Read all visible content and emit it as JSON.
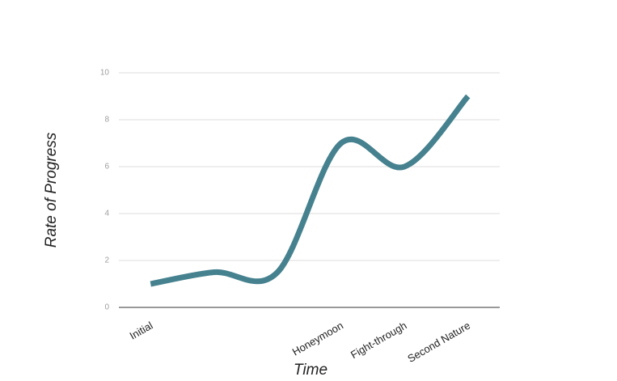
{
  "chart_data": {
    "type": "line",
    "x_label": "Time",
    "y_label": "Rate of Progress",
    "categories": [
      "Initial",
      null,
      null,
      "Honeymoon",
      "Fight-through",
      "Second Nature"
    ],
    "series": [
      {
        "name": "Rate of Progress",
        "color": "#45818e",
        "values": [
          1,
          1.5,
          1.5,
          7,
          6,
          9
        ]
      }
    ],
    "ylim": [
      0,
      10
    ],
    "yticks": [
      0,
      2,
      4,
      6,
      8,
      10
    ],
    "grid": true,
    "smooth": true
  }
}
